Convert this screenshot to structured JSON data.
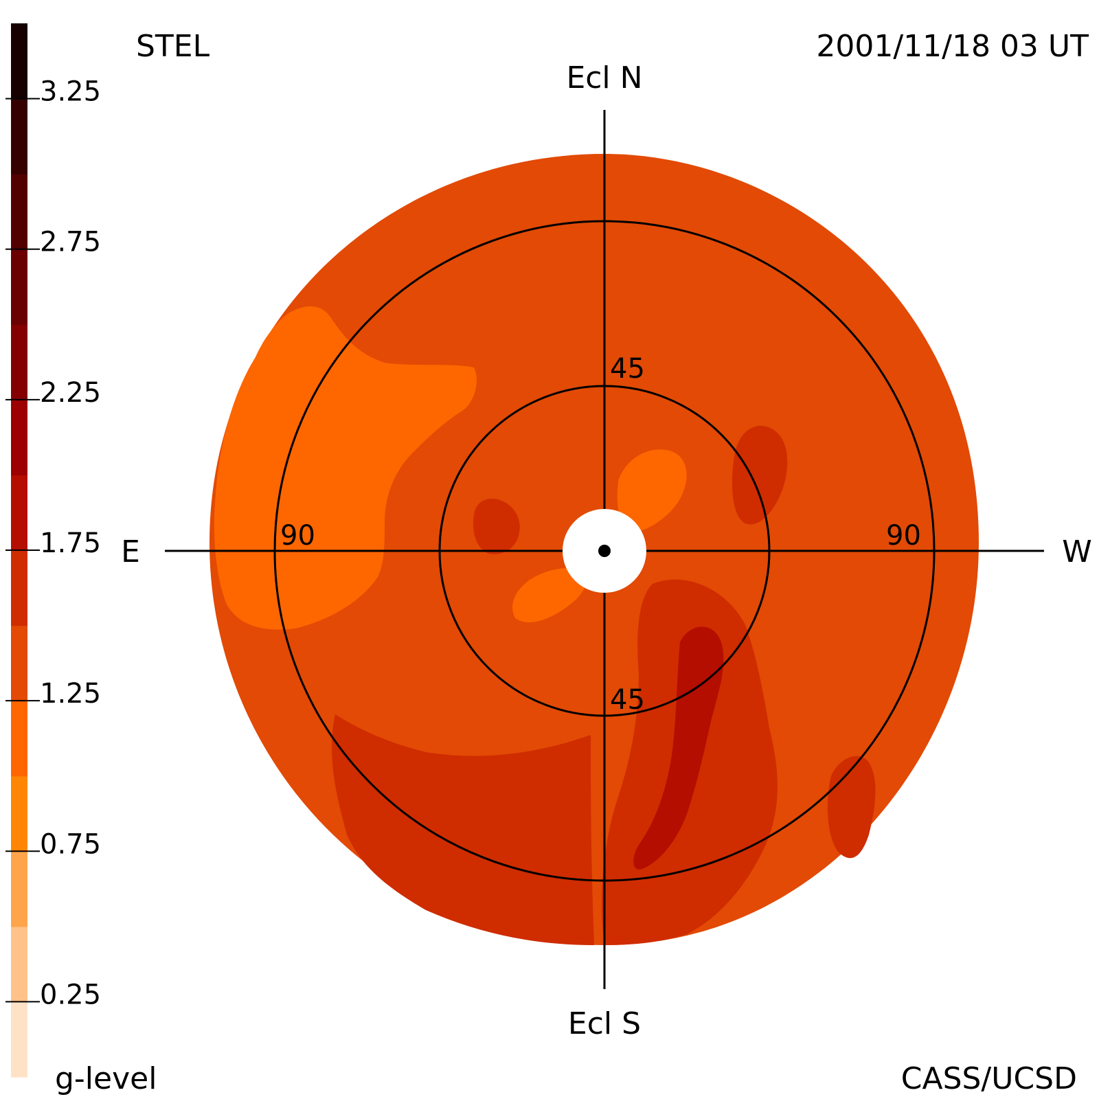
{
  "header": {
    "instrument": "STEL",
    "timestamp": "2001/11/18 03 UT"
  },
  "footer": {
    "colorbar_label": "g-level",
    "credit": "CASS/UCSD"
  },
  "directions": {
    "north": "Ecl N",
    "south": "Ecl S",
    "east": "E",
    "west": "W"
  },
  "ring_labels": {
    "inner_top": "45",
    "inner_bottom": "45",
    "outer_left": "90",
    "outer_right": "90"
  },
  "colors": {
    "background_level": "#e24a05",
    "ring_line": "#000000",
    "sun_occulter": "#ffffff"
  },
  "chart_data": {
    "type": "heatmap",
    "projection": "sky map, elongation from Sun (fisheye)",
    "rings_elongation_deg": [
      45,
      90
    ],
    "colorbar": {
      "label": "g-level",
      "range": [
        0.0,
        3.5
      ],
      "tick_values": [
        0.25,
        0.75,
        1.25,
        1.75,
        2.25,
        2.75,
        3.25
      ],
      "tick_labels": [
        "0.25",
        "0.75",
        "1.25",
        "1.75",
        "2.25",
        "2.75",
        "3.25"
      ],
      "bins": [
        {
          "min": 0.0,
          "max": 0.25,
          "color": "#ffe2c6"
        },
        {
          "min": 0.25,
          "max": 0.5,
          "color": "#ffc289"
        },
        {
          "min": 0.5,
          "max": 0.75,
          "color": "#fea44b"
        },
        {
          "min": 0.75,
          "max": 1.0,
          "color": "#ff8504"
        },
        {
          "min": 1.0,
          "max": 1.25,
          "color": "#fe6600"
        },
        {
          "min": 1.25,
          "max": 1.5,
          "color": "#e24a05"
        },
        {
          "min": 1.5,
          "max": 1.75,
          "color": "#cf2c00"
        },
        {
          "min": 1.75,
          "max": 2.0,
          "color": "#b30e00"
        },
        {
          "min": 2.0,
          "max": 2.25,
          "color": "#9c0000"
        },
        {
          "min": 2.25,
          "max": 2.5,
          "color": "#840000"
        },
        {
          "min": 2.5,
          "max": 2.75,
          "color": "#6a0000"
        },
        {
          "min": 2.75,
          "max": 3.0,
          "color": "#520000"
        },
        {
          "min": 3.0,
          "max": 3.25,
          "color": "#360000"
        },
        {
          "min": 3.25,
          "max": 3.5,
          "color": "#170000"
        }
      ]
    }
  }
}
